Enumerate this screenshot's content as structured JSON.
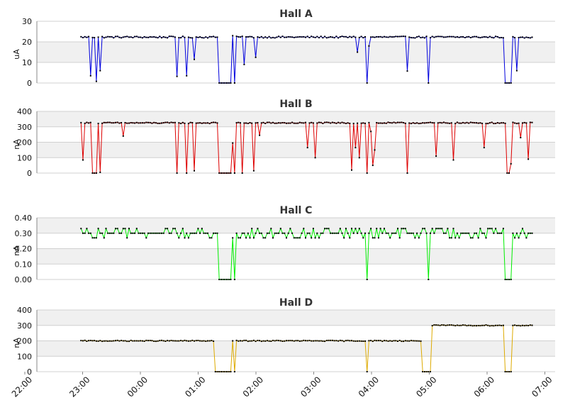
{
  "colors": {
    "background": "#ffffff",
    "band": "#f0f0f0",
    "grid": "#d0d0d0",
    "axis": "#888888",
    "marker": "#000000"
  },
  "x_axis": {
    "ticks": [
      "22:00",
      "23:00",
      "00:00",
      "01:00",
      "02:00",
      "03:00",
      "04:00",
      "05:00",
      "06:00",
      "07:00"
    ]
  },
  "chart_data": [
    {
      "type": "line",
      "title": "Hall A",
      "ylabel": "uA",
      "ylim": [
        0,
        30
      ],
      "yticks": [
        "0",
        "10",
        "20",
        "30"
      ],
      "color": "#0000dd",
      "baseline": 22.3,
      "noise": 0.4,
      "x_start": "22:46",
      "x_end": "06:36",
      "x_unit": "minutes after 22:00",
      "dropouts": [
        {
          "time": "22:56",
          "value": 3.5
        },
        {
          "time": "23:02",
          "value": 0.8
        },
        {
          "time": "23:05",
          "value": 6
        },
        {
          "time": "00:26",
          "value": 3.2
        },
        {
          "time": "00:36",
          "value": 3.5
        },
        {
          "time": "00:43",
          "value": 11.5
        },
        {
          "time": "01:35",
          "value": 9
        },
        {
          "time": "01:47",
          "value": 12.5
        },
        {
          "time": "03:34",
          "value": 15
        },
        {
          "time": "03:44",
          "value": 0
        },
        {
          "time": "03:46",
          "value": 18
        },
        {
          "time": "04:26",
          "value": 5.8
        },
        {
          "time": "04:48",
          "value": 0
        },
        {
          "time": "06:19",
          "value": 6
        }
      ],
      "gaps": [
        {
          "start": "01:10",
          "end": "01:27",
          "value": 0,
          "spike": {
            "time": "01:24",
            "value": 23
          }
        },
        {
          "start": "06:08",
          "end": "06:14",
          "value": 0
        }
      ]
    },
    {
      "type": "line",
      "title": "Hall B",
      "ylabel": "nA",
      "ylim": [
        0,
        400
      ],
      "yticks": [
        "0",
        "100",
        "200",
        "300",
        "400"
      ],
      "color": "#dd0000",
      "baseline": 325,
      "noise": 4,
      "x_start": "22:46",
      "x_end": "06:36",
      "x_unit": "minutes after 22:00",
      "dropouts": [
        {
          "time": "22:48",
          "value": 85
        },
        {
          "time": "22:58",
          "value": 0
        },
        {
          "time": "23:00",
          "value": 0
        },
        {
          "time": "23:02",
          "value": 0
        },
        {
          "time": "23:05",
          "value": 5
        },
        {
          "time": "23:30",
          "value": 240
        },
        {
          "time": "00:26",
          "value": 0
        },
        {
          "time": "00:36",
          "value": 0
        },
        {
          "time": "00:43",
          "value": 15
        },
        {
          "time": "01:34",
          "value": 0
        },
        {
          "time": "01:45",
          "value": 15
        },
        {
          "time": "01:52",
          "value": 245
        },
        {
          "time": "02:41",
          "value": 165
        },
        {
          "time": "02:49",
          "value": 100
        },
        {
          "time": "03:27",
          "value": 20
        },
        {
          "time": "03:31",
          "value": 165
        },
        {
          "time": "03:36",
          "value": 100
        },
        {
          "time": "03:44",
          "value": 0
        },
        {
          "time": "03:47",
          "value": 270
        },
        {
          "time": "03:50",
          "value": 50
        },
        {
          "time": "03:52",
          "value": 150
        },
        {
          "time": "04:26",
          "value": 0
        },
        {
          "time": "04:56",
          "value": 110
        },
        {
          "time": "05:13",
          "value": 85
        },
        {
          "time": "05:45",
          "value": 165
        },
        {
          "time": "06:23",
          "value": 230
        },
        {
          "time": "06:31",
          "value": 90
        }
      ],
      "gaps": [
        {
          "start": "01:10",
          "end": "01:26",
          "value": 0,
          "spike": {
            "time": "01:23",
            "value": 195
          }
        },
        {
          "start": "06:09",
          "end": "06:14",
          "value": 0,
          "spike": {
            "time": "06:14",
            "value": 60
          }
        }
      ]
    },
    {
      "type": "line",
      "title": "Hall C",
      "ylabel": "nA",
      "ylim": [
        0,
        0.4
      ],
      "yticks": [
        "0.00",
        "0.10",
        "0.20",
        "0.30",
        "0.40"
      ],
      "color": "#00ee00",
      "baseline": 0.3,
      "noise": 0.03,
      "x_start": "22:46",
      "x_end": "06:36",
      "x_unit": "minutes after 22:00",
      "dropouts": [
        {
          "time": "03:44",
          "value": 0
        },
        {
          "time": "04:48",
          "value": 0
        }
      ],
      "gaps": [
        {
          "start": "01:10",
          "end": "01:27",
          "value": 0,
          "spike": {
            "time": "01:24",
            "value": 0.27
          }
        },
        {
          "start": "06:08",
          "end": "06:14",
          "value": 0
        }
      ]
    },
    {
      "type": "line",
      "title": "Hall D",
      "ylabel": "nA",
      "ylim": [
        0,
        400
      ],
      "yticks": [
        "0",
        "100",
        "200",
        "300",
        "400"
      ],
      "color": "#ddaa00",
      "baseline": 200,
      "noise": 3,
      "step_change": {
        "time": "04:50",
        "value": 300
      },
      "x_start": "22:46",
      "x_end": "06:36",
      "x_unit": "minutes after 22:00",
      "dropouts": [
        {
          "time": "03:44",
          "value": 0
        }
      ],
      "gaps": [
        {
          "start": "01:05",
          "end": "01:08",
          "value": 0
        },
        {
          "start": "01:10",
          "end": "01:27",
          "value": 0,
          "spike": {
            "time": "01:24",
            "value": 200
          }
        },
        {
          "start": "04:42",
          "end": "04:50",
          "value": 0
        },
        {
          "start": "06:08",
          "end": "06:14",
          "value": 0
        }
      ]
    }
  ]
}
